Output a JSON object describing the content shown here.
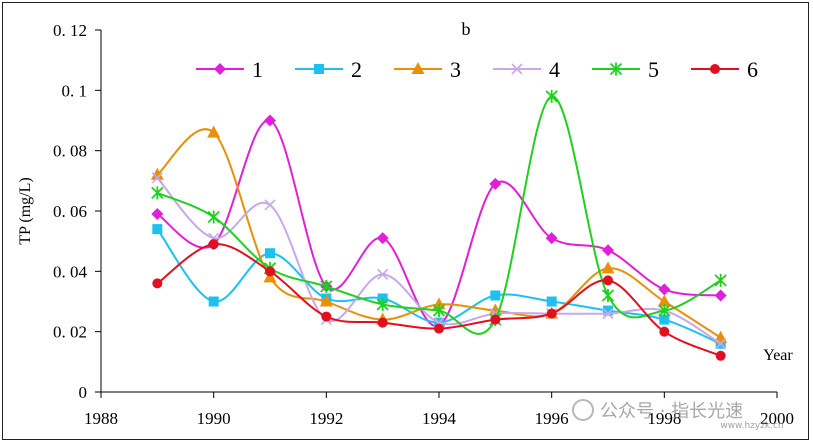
{
  "chart_data": {
    "type": "line",
    "title": "b",
    "ylabel": "TP (mg/L)",
    "xlabel": "Year",
    "xlim": [
      1988,
      2000
    ],
    "ylim": [
      0,
      0.12
    ],
    "xticks": [
      1988,
      1990,
      1992,
      1994,
      1996,
      1998,
      2000
    ],
    "xtick_labels": [
      "1988",
      "1990",
      "1992",
      "1994",
      "1996",
      "1998",
      "2000"
    ],
    "yticks": [
      0,
      0.02,
      0.04,
      0.06,
      0.08,
      0.1,
      0.12
    ],
    "ytick_labels": [
      "0",
      "0. 02",
      "0. 04",
      "0. 06",
      "0. 08",
      "0. 1",
      "0. 12"
    ],
    "grid": false,
    "legend_position": "top",
    "x": [
      1989,
      1990,
      1991,
      1992,
      1993,
      1994,
      1995,
      1996,
      1997,
      1998,
      1999
    ],
    "series": [
      {
        "name": "1",
        "color": "#e020d8",
        "marker": "diamond",
        "values": [
          0.059,
          0.049,
          0.09,
          0.035,
          0.051,
          0.022,
          0.069,
          0.051,
          0.047,
          0.034,
          0.032
        ]
      },
      {
        "name": "2",
        "color": "#1ec0f0",
        "marker": "square",
        "values": [
          0.054,
          0.03,
          0.046,
          0.031,
          0.031,
          0.023,
          0.032,
          0.03,
          0.027,
          0.024,
          0.016
        ]
      },
      {
        "name": "3",
        "color": "#e8900a",
        "marker": "triangle",
        "values": [
          0.072,
          0.086,
          0.038,
          0.03,
          0.024,
          0.029,
          0.027,
          0.026,
          0.041,
          0.03,
          0.018
        ]
      },
      {
        "name": "4",
        "color": "#c8a8e8",
        "marker": "x",
        "values": [
          0.071,
          0.051,
          0.062,
          0.024,
          0.039,
          0.023,
          0.026,
          0.026,
          0.026,
          0.027,
          0.016
        ]
      },
      {
        "name": "5",
        "color": "#20d020",
        "marker": "asterisk",
        "values": [
          0.066,
          0.058,
          0.041,
          0.035,
          0.029,
          0.027,
          0.024,
          0.098,
          0.032,
          0.027,
          0.037
        ]
      },
      {
        "name": "6",
        "color": "#e01020",
        "marker": "circle",
        "values": [
          0.036,
          0.049,
          0.04,
          0.025,
          0.023,
          0.021,
          0.024,
          0.026,
          0.037,
          0.02,
          0.012
        ]
      }
    ]
  },
  "watermark": {
    "text": "公众号 · 指长光速",
    "url": "www.hzyzk.cn"
  }
}
